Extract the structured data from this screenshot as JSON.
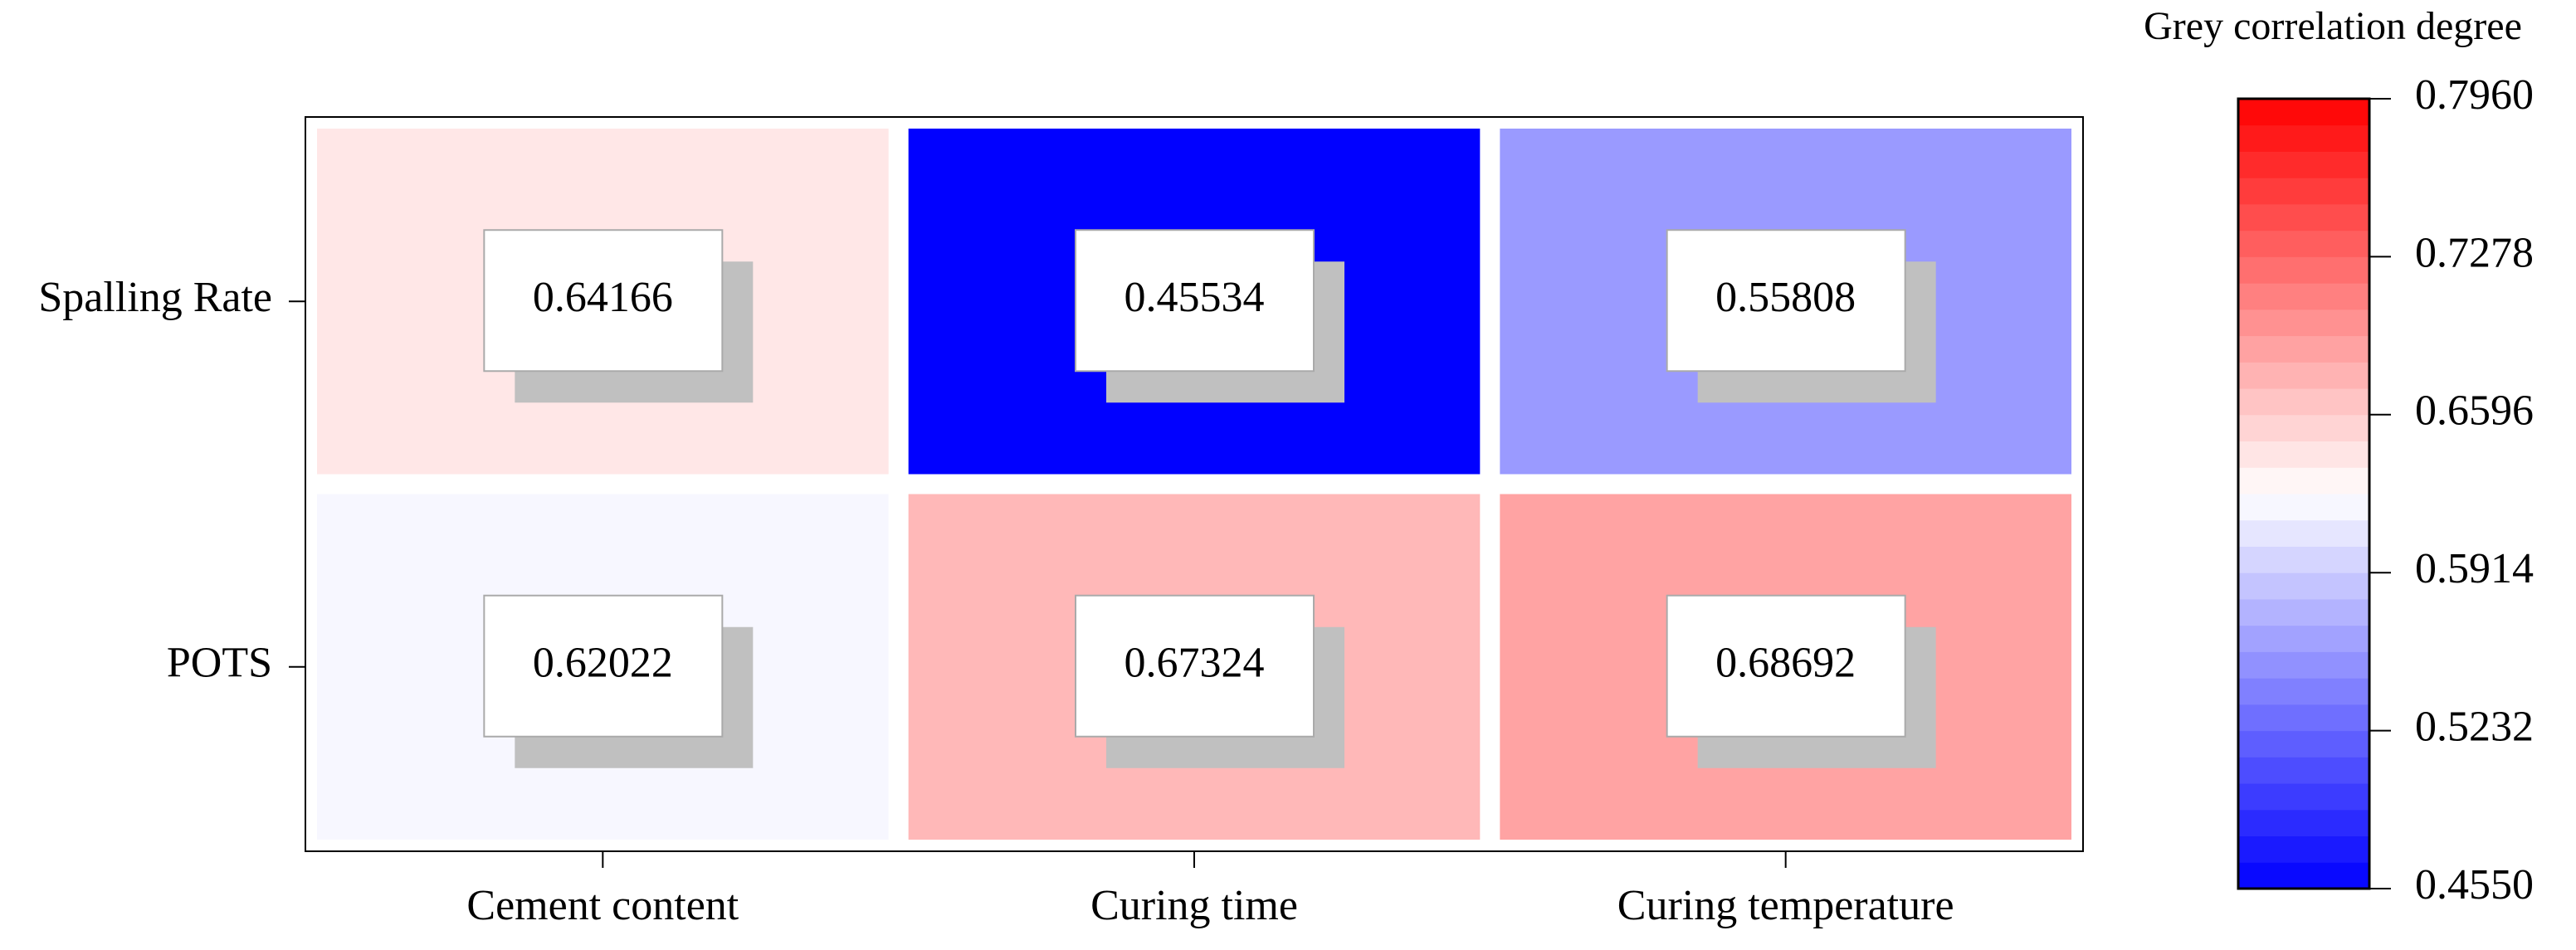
{
  "chart_data": {
    "type": "heatmap",
    "rows": [
      "Spalling Rate",
      "POTS"
    ],
    "columns": [
      "Cement content",
      "Curing time",
      "Curing temperature"
    ],
    "values": [
      [
        0.64166,
        0.45534,
        0.55808
      ],
      [
        0.62022,
        0.67324,
        0.68692
      ]
    ],
    "colorbar_title": "Grey correlation degree",
    "colormap": [
      "#0000ff",
      "#ffffff",
      "#ff0000"
    ],
    "clim": [
      0.455,
      0.796
    ],
    "cticks": [
      {
        "value": 0.455,
        "label": "0.4550"
      },
      0.5232,
      0.5914,
      0.6596,
      0.7278,
      {
        "value": 0.796,
        "label": "0.7960"
      }
    ]
  }
}
